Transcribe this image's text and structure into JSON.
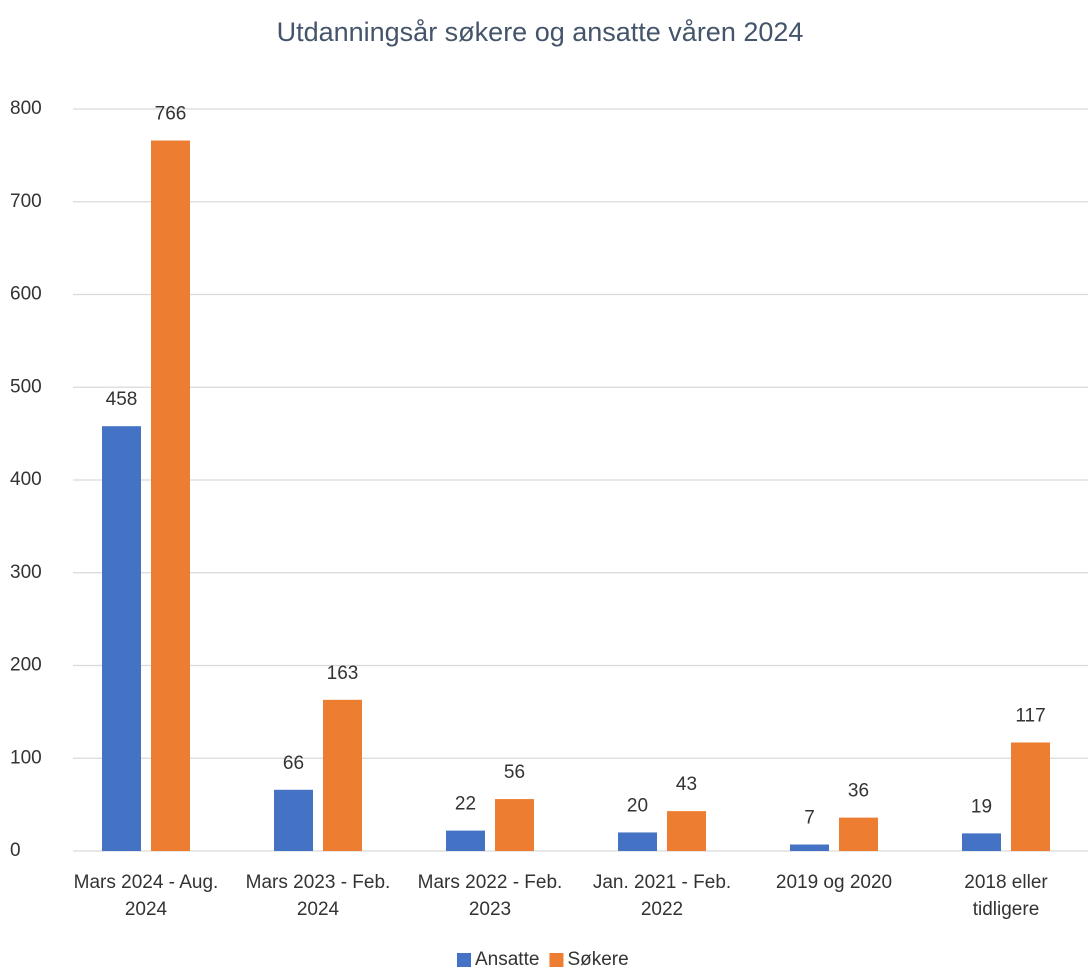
{
  "chart_data": {
    "type": "bar",
    "title": "Utdanningsår søkere og ansatte våren 2024",
    "categories": [
      "Mars 2024 - Aug. 2024",
      "Mars 2023 - Feb. 2024",
      "Mars 2022 - Feb. 2023",
      "Jan. 2021 - Feb. 2022",
      "2019 og 2020",
      "2018 eller tidligere"
    ],
    "series": [
      {
        "name": "Ansatte",
        "color": "#4472c4",
        "values": [
          458,
          66,
          22,
          20,
          7,
          19
        ]
      },
      {
        "name": "Søkere",
        "color": "#ed7d31",
        "values": [
          766,
          163,
          56,
          43,
          36,
          117
        ]
      }
    ],
    "ylim": [
      0,
      800
    ],
    "yticks": [
      0,
      100,
      200,
      300,
      400,
      500,
      600,
      700,
      800
    ],
    "grid": true,
    "legend": "bottom"
  }
}
